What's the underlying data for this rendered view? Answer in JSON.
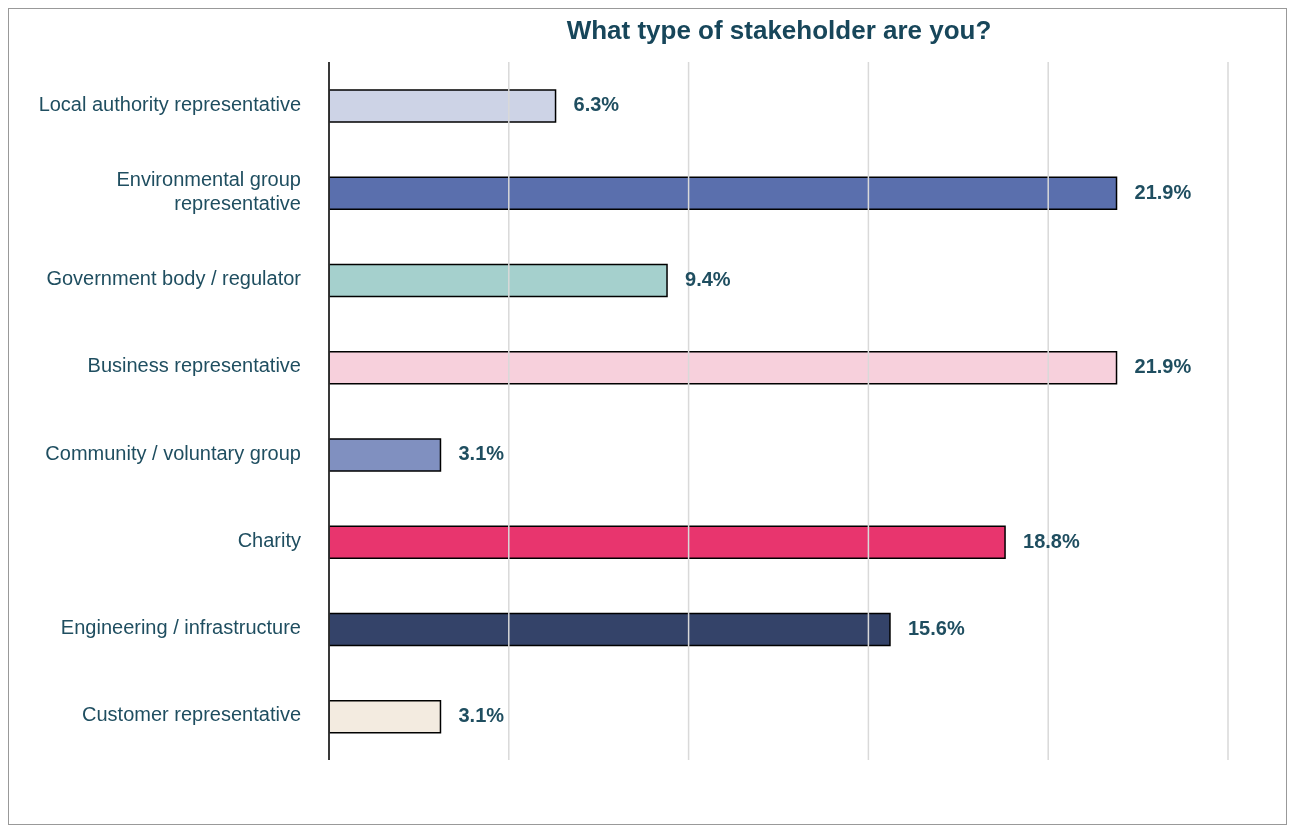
{
  "chart_data": {
    "type": "bar",
    "orientation": "horizontal",
    "title": "What type of stakeholder are you?",
    "categories": [
      "Local authority representative",
      "Environmental group representative",
      "Government body / regulator",
      "Business representative",
      "Community / voluntary group",
      "Charity",
      "Engineering / infrastructure",
      "Customer representative"
    ],
    "values": [
      6.3,
      21.9,
      9.4,
      21.9,
      3.1,
      18.8,
      15.6,
      3.1
    ],
    "value_labels": [
      "6.3%",
      "21.9%",
      "9.4%",
      "21.9%",
      "3.1%",
      "18.8%",
      "15.6%",
      "3.1%"
    ],
    "colors": [
      "#cdd3e6",
      "#5a6fad",
      "#a5d0cd",
      "#f7d0dc",
      "#8090c0",
      "#e8356e",
      "#344369",
      "#f3ebe0"
    ],
    "xlim": [
      0,
      25
    ],
    "xticks": [
      {
        "value": 0,
        "label": null
      },
      {
        "value": 5,
        "label": null
      },
      {
        "value": 10,
        "label": null
      },
      {
        "value": 15,
        "label": null
      },
      {
        "value": 20,
        "label": null
      },
      {
        "value": 25,
        "label": null
      }
    ],
    "grid": "x",
    "tick_labels": "y"
  }
}
